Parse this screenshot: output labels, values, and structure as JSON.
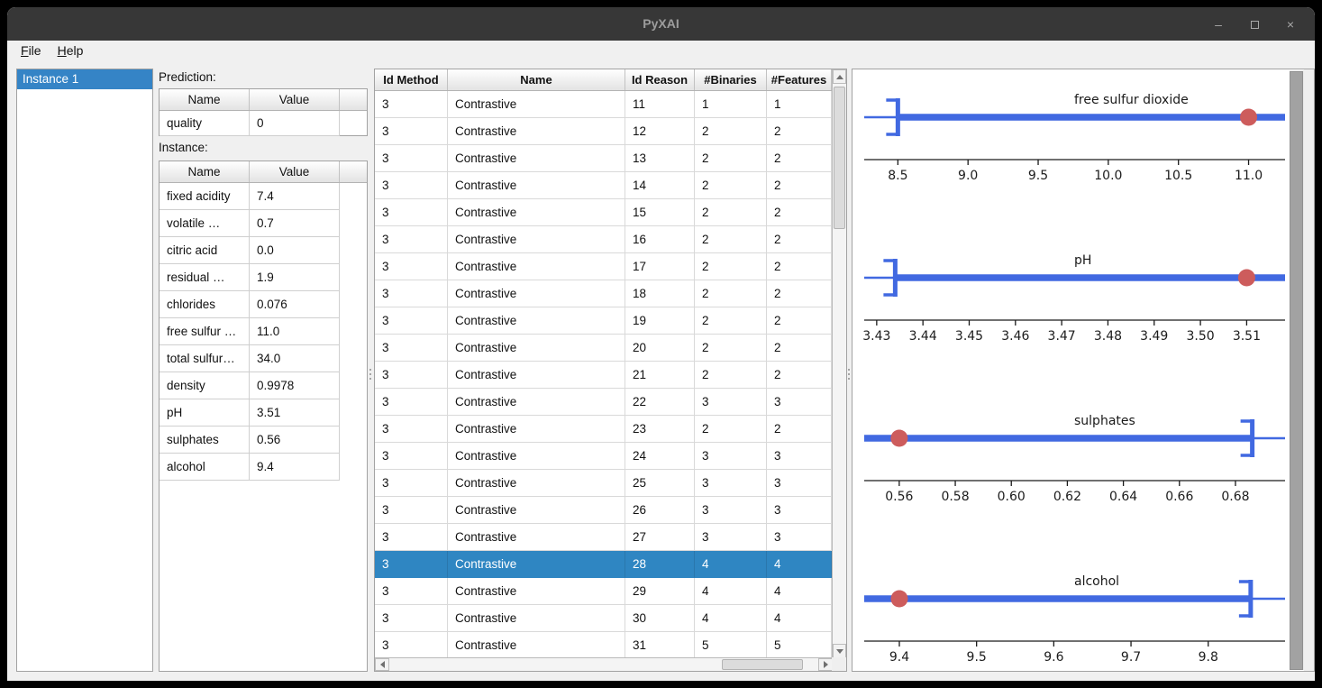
{
  "window": {
    "title": "PyXAI",
    "controls": {
      "minimize": "–",
      "close": "×"
    }
  },
  "menu": {
    "items": [
      {
        "label": "File",
        "underline": "F"
      },
      {
        "label": "Help",
        "underline": "H"
      }
    ]
  },
  "instance_list": {
    "items": [
      "Instance 1"
    ],
    "selected_index": 0
  },
  "prediction": {
    "label": "Prediction:",
    "headers": [
      "Name",
      "Value"
    ],
    "rows": [
      [
        "quality",
        "0"
      ]
    ]
  },
  "instance": {
    "label": "Instance:",
    "headers": [
      "Name",
      "Value"
    ],
    "rows": [
      [
        "fixed acidity",
        "7.4"
      ],
      [
        "volatile …",
        "0.7"
      ],
      [
        "citric acid",
        "0.0"
      ],
      [
        "residual …",
        "1.9"
      ],
      [
        "chlorides",
        "0.076"
      ],
      [
        "free sulfur …",
        "11.0"
      ],
      [
        "total sulfur…",
        "34.0"
      ],
      [
        "density",
        "0.9978"
      ],
      [
        "pH",
        "3.51"
      ],
      [
        "sulphates",
        "0.56"
      ],
      [
        "alcohol",
        "9.4"
      ]
    ]
  },
  "reasons_table": {
    "headers": [
      "Id Method",
      "Name",
      "Id Reason",
      "#Binaries",
      "#Features"
    ],
    "selected_row_index": 17,
    "rows": [
      [
        "3",
        "Contrastive",
        "11",
        "1",
        "1"
      ],
      [
        "3",
        "Contrastive",
        "12",
        "2",
        "2"
      ],
      [
        "3",
        "Contrastive",
        "13",
        "2",
        "2"
      ],
      [
        "3",
        "Contrastive",
        "14",
        "2",
        "2"
      ],
      [
        "3",
        "Contrastive",
        "15",
        "2",
        "2"
      ],
      [
        "3",
        "Contrastive",
        "16",
        "2",
        "2"
      ],
      [
        "3",
        "Contrastive",
        "17",
        "2",
        "2"
      ],
      [
        "3",
        "Contrastive",
        "18",
        "2",
        "2"
      ],
      [
        "3",
        "Contrastive",
        "19",
        "2",
        "2"
      ],
      [
        "3",
        "Contrastive",
        "20",
        "2",
        "2"
      ],
      [
        "3",
        "Contrastive",
        "21",
        "2",
        "2"
      ],
      [
        "3",
        "Contrastive",
        "22",
        "3",
        "3"
      ],
      [
        "3",
        "Contrastive",
        "23",
        "2",
        "2"
      ],
      [
        "3",
        "Contrastive",
        "24",
        "3",
        "3"
      ],
      [
        "3",
        "Contrastive",
        "25",
        "3",
        "3"
      ],
      [
        "3",
        "Contrastive",
        "26",
        "3",
        "3"
      ],
      [
        "3",
        "Contrastive",
        "27",
        "3",
        "3"
      ],
      [
        "3",
        "Contrastive",
        "28",
        "4",
        "4"
      ],
      [
        "3",
        "Contrastive",
        "29",
        "4",
        "4"
      ],
      [
        "3",
        "Contrastive",
        "30",
        "4",
        "4"
      ],
      [
        "3",
        "Contrastive",
        "31",
        "5",
        "5"
      ]
    ]
  },
  "chart_data": [
    {
      "type": "interval_line",
      "title": "free sulfur dioxide",
      "xlim": [
        8.26,
        11.26
      ],
      "tick_values": [
        8.5,
        9.0,
        9.5,
        10.0,
        10.5,
        11.0
      ],
      "tick_labels": [
        "8.5",
        "9.0",
        "9.5",
        "10.0",
        "10.5",
        "11.0"
      ],
      "boundary_value": 8.5,
      "boundary_side": "left",
      "instance_value": 11.0,
      "interval": [
        8.5,
        11.26
      ]
    },
    {
      "type": "interval_line",
      "title": "pH",
      "xlim": [
        3.4273,
        3.5183
      ],
      "tick_values": [
        3.43,
        3.44,
        3.45,
        3.46,
        3.47,
        3.48,
        3.49,
        3.5,
        3.51
      ],
      "tick_labels": [
        "3.43",
        "3.44",
        "3.45",
        "3.46",
        "3.47",
        "3.48",
        "3.49",
        "3.50",
        "3.51"
      ],
      "boundary_value": 3.434,
      "boundary_side": "left",
      "instance_value": 3.51,
      "interval": [
        3.434,
        3.5183
      ]
    },
    {
      "type": "interval_line",
      "title": "sulphates",
      "xlim": [
        0.5475,
        0.6977
      ],
      "tick_values": [
        0.56,
        0.58,
        0.6,
        0.62,
        0.64,
        0.66,
        0.68
      ],
      "tick_labels": [
        "0.56",
        "0.58",
        "0.60",
        "0.62",
        "0.64",
        "0.66",
        "0.68"
      ],
      "boundary_value": 0.686,
      "boundary_side": "right",
      "instance_value": 0.56,
      "interval": [
        0.5475,
        0.686
      ]
    },
    {
      "type": "interval_line",
      "title": "alcohol",
      "xlim": [
        9.3545,
        9.8995
      ],
      "tick_values": [
        9.4,
        9.5,
        9.6,
        9.7,
        9.8
      ],
      "tick_labels": [
        "9.4",
        "9.5",
        "9.6",
        "9.7",
        "9.8"
      ],
      "boundary_value": 9.855,
      "boundary_side": "right",
      "instance_value": 9.4,
      "interval": [
        9.3545,
        9.855
      ]
    }
  ],
  "colors": {
    "selection": "#2f86c2",
    "list_selection": "#3584c6",
    "plot_line": "#4169e1",
    "plot_dot": "#cd5c5c",
    "titlebar": "#373737"
  }
}
